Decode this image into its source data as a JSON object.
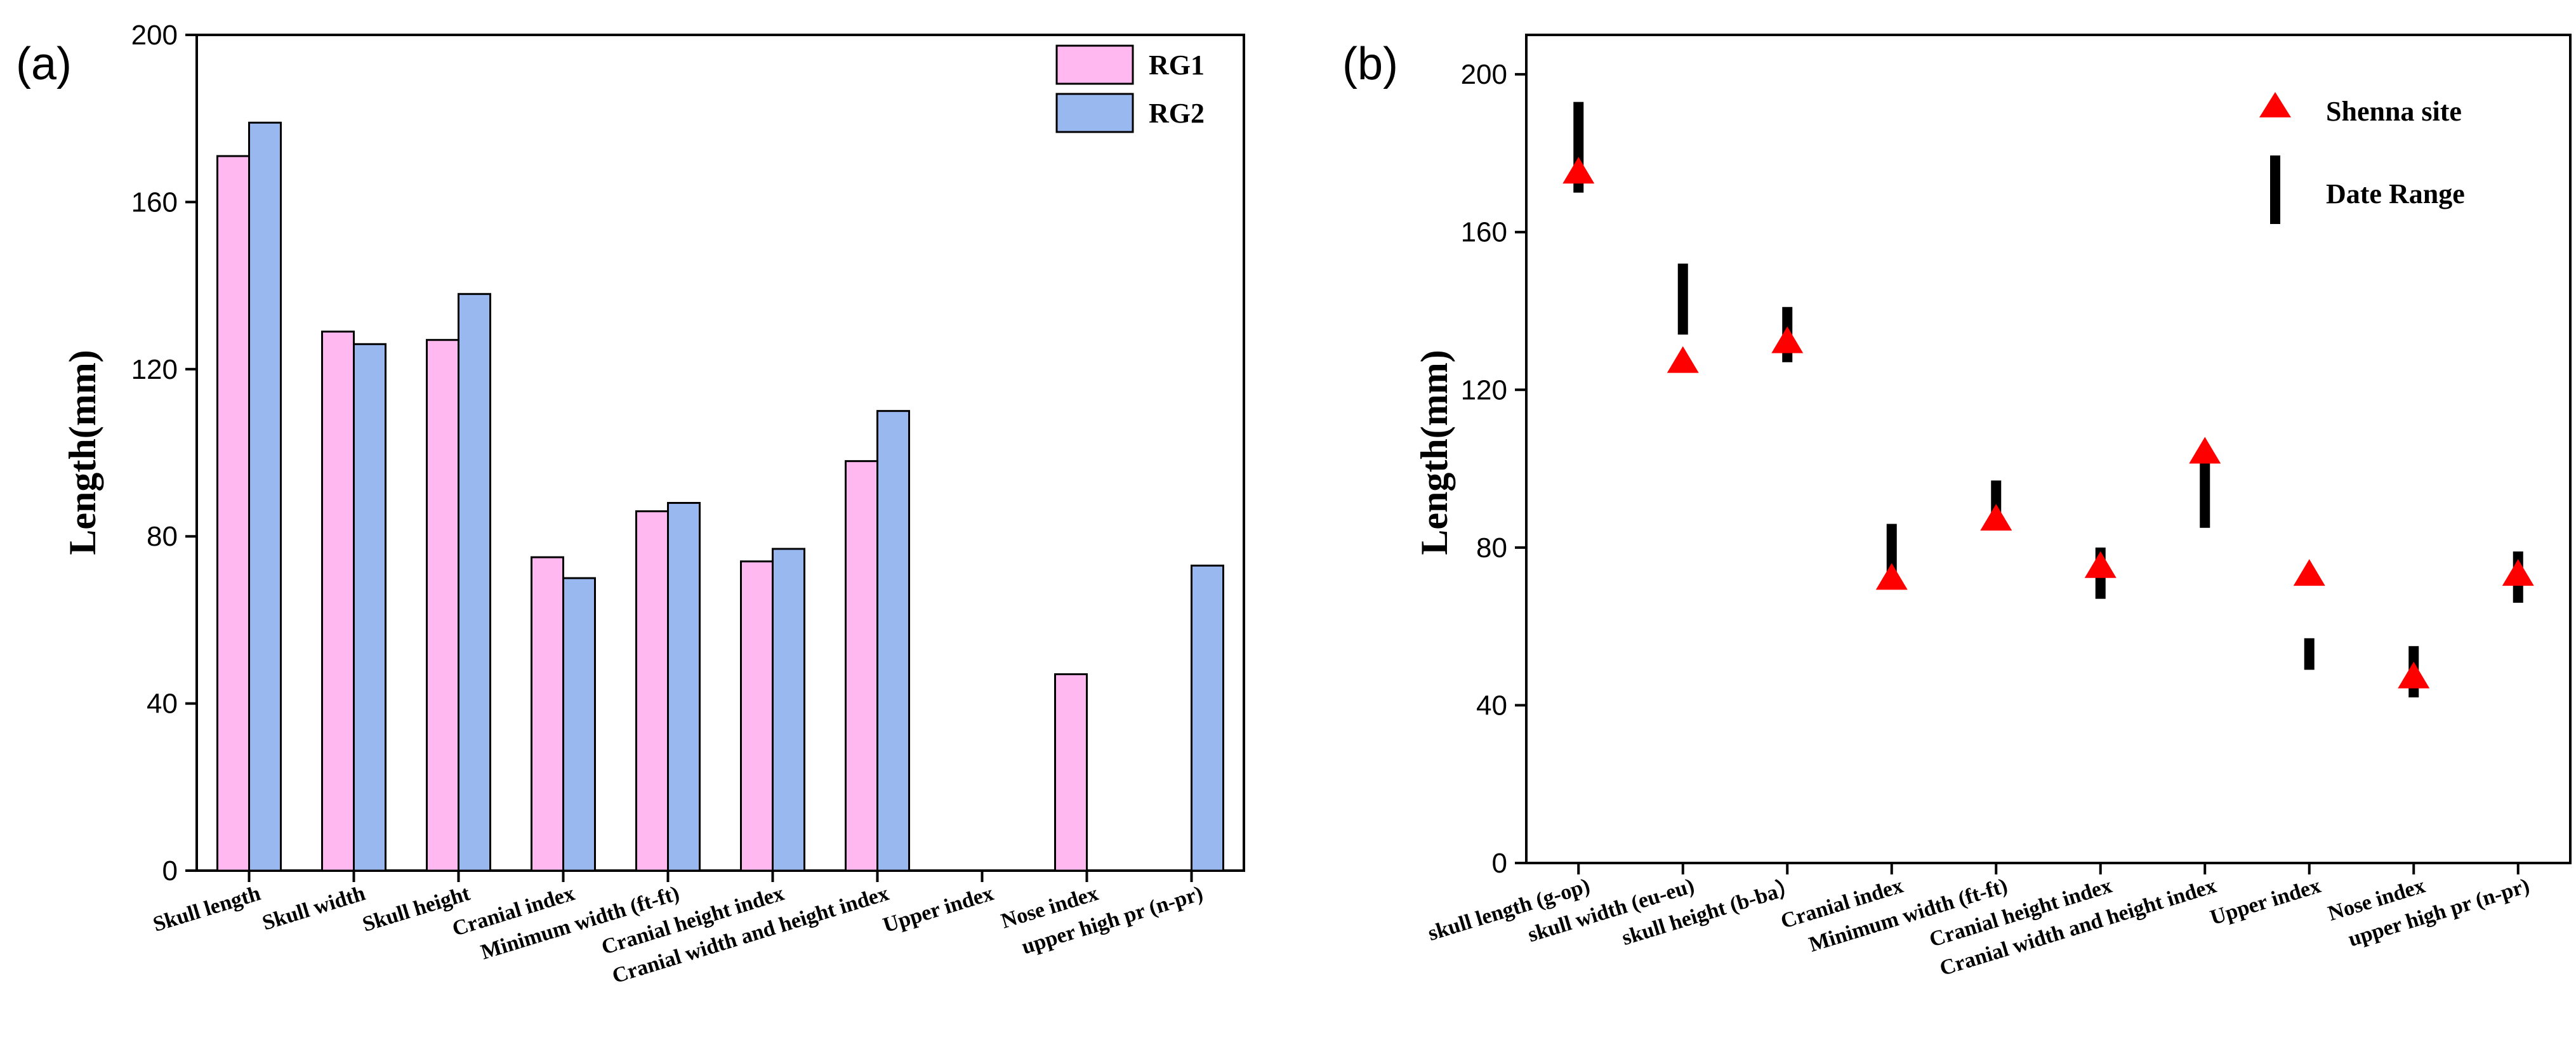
{
  "chart_data": [
    {
      "type": "bar",
      "panel_label": "(a)",
      "ylabel": "Length(mm)",
      "xlabel": "",
      "ylim": [
        0,
        200
      ],
      "yticks": [
        0,
        40,
        80,
        120,
        160,
        200
      ],
      "categories": [
        "Skull length",
        "Skull width",
        "Skull height",
        "Cranial index",
        "Minimum width (ft-ft)",
        "Cranial height index",
        "Cranial width and height index",
        "Upper index",
        "Nose index",
        "upper high pr (n-pr)"
      ],
      "series": [
        {
          "name": "RG1",
          "color": "#ffb8f0",
          "values": [
            171,
            129,
            127,
            75,
            86,
            74,
            98,
            null,
            47,
            null
          ]
        },
        {
          "name": "RG2",
          "color": "#9ab8f0",
          "values": [
            179,
            126,
            138,
            70,
            88,
            77,
            110,
            null,
            null,
            73
          ]
        }
      ],
      "legend_position": "top-right",
      "grid": false
    },
    {
      "type": "scatter",
      "panel_label": "(b)",
      "ylabel": "Length(mm)",
      "xlabel": "",
      "ylim": [
        0,
        210
      ],
      "yticks": [
        0,
        40,
        80,
        120,
        160,
        200
      ],
      "categories": [
        "skull length (g-op)",
        "skull width (eu-eu)",
        "skull height (b-ba）",
        "Cranial index",
        "Minimum width (ft-ft)",
        "Cranial height index",
        "Cranial width and height index",
        "Upper index",
        "Nose index",
        "upper high pr (n-pr)"
      ],
      "points": {
        "name": "Shenna site",
        "color": "#ff0000",
        "values": [
          175,
          127,
          132,
          72,
          87,
          75,
          104,
          73,
          47,
          73
        ]
      },
      "ranges": {
        "name": "Date Range",
        "color": "#000000",
        "values": [
          [
            170,
            193
          ],
          [
            134,
            152
          ],
          [
            127,
            141
          ],
          [
            71,
            86
          ],
          [
            86,
            97
          ],
          [
            67,
            80
          ],
          [
            85,
            102
          ],
          [
            49,
            57
          ],
          [
            42,
            55
          ],
          [
            66,
            79
          ]
        ]
      },
      "legend_position": "top-right",
      "grid": false
    }
  ]
}
